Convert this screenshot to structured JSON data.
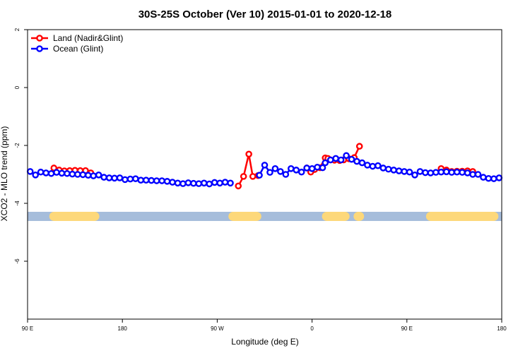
{
  "chart_data": {
    "type": "line",
    "title": "30S-25S October (Ver 10)   2015-01-01 to 2020-12-18",
    "xlabel": "Longitude (deg E)",
    "ylabel": "XCO2 - MLO trend (ppm)",
    "xlim": [
      90,
      450
    ],
    "ylim": [
      -8,
      2
    ],
    "x_ticks": [
      {
        "value": 90,
        "label": "90 E"
      },
      {
        "value": 162,
        "label": "180"
      },
      {
        "value": 234,
        "label": "90 W"
      },
      {
        "value": 306,
        "label": "0"
      },
      {
        "value": 378,
        "label": "90 E"
      },
      {
        "value": 450,
        "label": "180"
      }
    ],
    "y_ticks": [
      {
        "value": 2,
        "label": "2"
      },
      {
        "value": 0,
        "label": "0"
      },
      {
        "value": -2,
        "label": "-2"
      },
      {
        "value": -4,
        "label": "-4"
      },
      {
        "value": -6,
        "label": "-6"
      }
    ],
    "legend": {
      "placement": "top-left"
    },
    "land_mask": {
      "y": -4.45,
      "ocean_color": "#a6bddb",
      "land_color": "#fdd87a",
      "land_spans": [
        [
          110,
          141
        ],
        [
          246,
          264
        ],
        [
          317,
          331
        ],
        [
          341,
          342
        ],
        [
          396,
          444
        ]
      ]
    },
    "series": [
      {
        "name": "Land (Nadir&Glint)",
        "color": "#ff0000",
        "segments": [
          {
            "x": [
              110,
              114,
              118,
              122,
              126,
              130,
              134,
              138
            ],
            "y": [
              -2.78,
              -2.85,
              -2.88,
              -2.87,
              -2.86,
              -2.87,
              -2.87,
              -2.95
            ]
          },
          {
            "x": [
              250,
              254,
              258,
              261,
              265
            ],
            "y": [
              -3.4,
              -3.07,
              -2.3,
              -3.07,
              -3.04
            ]
          },
          {
            "x": [
              302,
              305,
              308,
              312,
              316,
              318,
              320,
              323,
              327,
              330,
              334,
              338,
              342
            ],
            "y": [
              -2.78,
              -2.92,
              -2.83,
              -2.77,
              -2.43,
              -2.45,
              -2.5,
              -2.51,
              -2.52,
              -2.5,
              -2.46,
              -2.42,
              -2.03
            ]
          },
          {
            "x": [
              404,
              408,
              412,
              416,
              420,
              424,
              428
            ],
            "y": [
              -2.8,
              -2.85,
              -2.9,
              -2.89,
              -2.89,
              -2.88,
              -2.9
            ]
          }
        ]
      },
      {
        "name": "Ocean (Glint)",
        "color": "#0000ff",
        "segments": [
          {
            "x": [
              92,
              96,
              100,
              104,
              108,
              112,
              116,
              120,
              124,
              128,
              132,
              136,
              140,
              144,
              148,
              152,
              156,
              160,
              164,
              168,
              172,
              176,
              180,
              184,
              188,
              192,
              196,
              200,
              204,
              208,
              212,
              216,
              220,
              224,
              228,
              232,
              236,
              240,
              244
            ],
            "y": [
              -2.9,
              -3.02,
              -2.92,
              -2.95,
              -2.97,
              -2.93,
              -2.96,
              -2.97,
              -2.99,
              -3.0,
              -3.01,
              -3.03,
              -3.05,
              -3.02,
              -3.1,
              -3.12,
              -3.13,
              -3.12,
              -3.18,
              -3.16,
              -3.15,
              -3.2,
              -3.2,
              -3.21,
              -3.22,
              -3.22,
              -3.24,
              -3.27,
              -3.3,
              -3.32,
              -3.29,
              -3.31,
              -3.32,
              -3.3,
              -3.33,
              -3.28,
              -3.3,
              -3.27,
              -3.3
            ]
          },
          {
            "x": [
              266,
              270,
              274,
              278,
              282,
              286,
              290,
              294,
              298,
              302,
              306,
              310,
              314,
              316,
              320,
              324,
              328,
              332,
              336,
              340,
              344,
              348,
              352,
              356,
              360,
              364,
              368,
              372,
              376,
              380,
              384,
              388,
              392,
              396,
              400,
              404,
              408,
              412,
              416,
              420,
              424,
              428,
              432,
              436,
              440,
              444,
              448
            ],
            "y": [
              -3.03,
              -2.68,
              -2.93,
              -2.8,
              -2.9,
              -3.0,
              -2.8,
              -2.85,
              -2.92,
              -2.78,
              -2.8,
              -2.75,
              -2.77,
              -2.6,
              -2.5,
              -2.45,
              -2.5,
              -2.35,
              -2.48,
              -2.55,
              -2.6,
              -2.68,
              -2.72,
              -2.7,
              -2.78,
              -2.82,
              -2.85,
              -2.88,
              -2.9,
              -2.92,
              -3.02,
              -2.9,
              -2.94,
              -2.95,
              -2.93,
              -2.92,
              -2.91,
              -2.93,
              -2.92,
              -2.93,
              -2.95,
              -3.0,
              -3.0,
              -3.1,
              -3.14,
              -3.15,
              -3.12
            ]
          }
        ]
      }
    ]
  }
}
